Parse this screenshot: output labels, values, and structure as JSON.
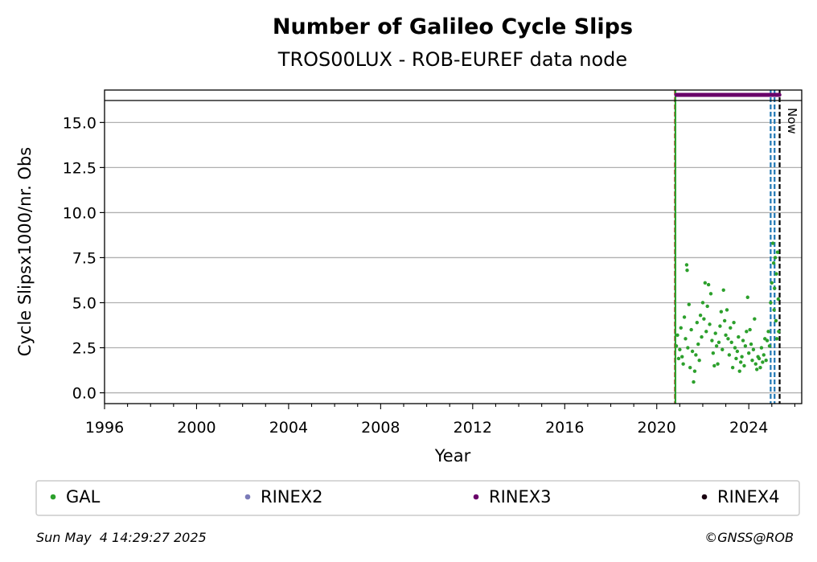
{
  "chart_data": {
    "type": "scatter",
    "title": "Number of Galileo Cycle Slips",
    "subtitle": "TROS00LUX - ROB-EUREF data node",
    "xlabel": "Year",
    "ylabel": "Cycle Slipsx1000/nr. Obs",
    "xlim": [
      1996,
      2026.3
    ],
    "ylim": [
      -0.6,
      16.8
    ],
    "xticks": [
      "1996",
      "2000",
      "2004",
      "2008",
      "2012",
      "2016",
      "2020",
      "2024"
    ],
    "yticks": [
      "0.0",
      "2.5",
      "5.0",
      "7.5",
      "10.0",
      "12.5",
      "15.0"
    ],
    "grid": "horizontal",
    "legend_position": "bottom",
    "legend": [
      {
        "label": "GAL",
        "color": "#2ca02c"
      },
      {
        "label": "RINEX2",
        "color": "#7b7bb8"
      },
      {
        "label": "RINEX3",
        "color": "#6a006a"
      },
      {
        "label": "RINEX4",
        "color": "#1a0010"
      }
    ],
    "series": [
      {
        "name": "GAL",
        "color": "#2ca02c",
        "points": [
          [
            2020.85,
            2.6
          ],
          [
            2020.9,
            3.2
          ],
          [
            2020.95,
            1.9
          ],
          [
            2021.0,
            2.4
          ],
          [
            2021.05,
            3.6
          ],
          [
            2021.1,
            2.0
          ],
          [
            2021.15,
            1.6
          ],
          [
            2021.2,
            4.2
          ],
          [
            2021.25,
            3.0
          ],
          [
            2021.3,
            7.1
          ],
          [
            2021.32,
            6.8
          ],
          [
            2021.35,
            2.5
          ],
          [
            2021.4,
            4.9
          ],
          [
            2021.45,
            1.4
          ],
          [
            2021.5,
            3.5
          ],
          [
            2021.55,
            2.3
          ],
          [
            2021.6,
            0.6
          ],
          [
            2021.65,
            1.2
          ],
          [
            2021.7,
            2.1
          ],
          [
            2021.75,
            3.9
          ],
          [
            2021.8,
            2.7
          ],
          [
            2021.85,
            1.8
          ],
          [
            2021.9,
            4.3
          ],
          [
            2021.95,
            3.1
          ],
          [
            2022.0,
            5.0
          ],
          [
            2022.05,
            4.1
          ],
          [
            2022.1,
            6.1
          ],
          [
            2022.15,
            3.4
          ],
          [
            2022.2,
            4.8
          ],
          [
            2022.25,
            6.0
          ],
          [
            2022.3,
            3.8
          ],
          [
            2022.35,
            5.5
          ],
          [
            2022.4,
            2.9
          ],
          [
            2022.45,
            2.2
          ],
          [
            2022.5,
            1.5
          ],
          [
            2022.55,
            3.3
          ],
          [
            2022.6,
            2.6
          ],
          [
            2022.65,
            1.6
          ],
          [
            2022.7,
            2.8
          ],
          [
            2022.75,
            3.7
          ],
          [
            2022.8,
            4.5
          ],
          [
            2022.85,
            2.4
          ],
          [
            2022.9,
            5.7
          ],
          [
            2022.95,
            4.0
          ],
          [
            2023.0,
            3.2
          ],
          [
            2023.05,
            4.6
          ],
          [
            2023.1,
            3.0
          ],
          [
            2023.15,
            2.1
          ],
          [
            2023.2,
            3.6
          ],
          [
            2023.25,
            2.8
          ],
          [
            2023.3,
            1.4
          ],
          [
            2023.35,
            3.9
          ],
          [
            2023.4,
            2.5
          ],
          [
            2023.45,
            1.9
          ],
          [
            2023.5,
            2.3
          ],
          [
            2023.55,
            3.1
          ],
          [
            2023.6,
            1.2
          ],
          [
            2023.65,
            1.7
          ],
          [
            2023.7,
            2.0
          ],
          [
            2023.75,
            2.9
          ],
          [
            2023.8,
            1.5
          ],
          [
            2023.85,
            2.6
          ],
          [
            2023.9,
            3.4
          ],
          [
            2023.95,
            5.3
          ],
          [
            2024.0,
            2.2
          ],
          [
            2024.05,
            3.5
          ],
          [
            2024.1,
            2.7
          ],
          [
            2024.15,
            1.8
          ],
          [
            2024.2,
            2.4
          ],
          [
            2024.25,
            4.1
          ],
          [
            2024.3,
            1.6
          ],
          [
            2024.35,
            1.3
          ],
          [
            2024.4,
            2.0
          ],
          [
            2024.45,
            1.9
          ],
          [
            2024.5,
            1.4
          ],
          [
            2024.55,
            2.5
          ],
          [
            2024.6,
            1.7
          ],
          [
            2024.65,
            2.1
          ],
          [
            2024.7,
            3.0
          ],
          [
            2024.75,
            1.8
          ],
          [
            2024.8,
            2.9
          ],
          [
            2024.85,
            3.4
          ],
          [
            2024.9,
            2.6
          ],
          [
            2024.95,
            5.0
          ],
          [
            2025.0,
            6.1
          ],
          [
            2025.05,
            8.3
          ],
          [
            2025.08,
            7.2
          ],
          [
            2025.1,
            4.6
          ],
          [
            2025.12,
            5.8
          ],
          [
            2025.15,
            7.5
          ],
          [
            2025.18,
            4.0
          ],
          [
            2025.2,
            6.6
          ],
          [
            2025.22,
            3.0
          ],
          [
            2025.25,
            7.8
          ],
          [
            2025.28,
            5.2
          ],
          [
            2025.3,
            3.4
          ]
        ]
      }
    ],
    "rinex3_bar": {
      "start": 2020.85,
      "end": 2025.33,
      "y": 16.8,
      "color": "#6a006a"
    },
    "vertical_markers": [
      {
        "x": 2020.79,
        "color": "#d62728",
        "style": "dashed"
      },
      {
        "x": 2020.81,
        "color": "#2ca02c",
        "style": "solid"
      },
      {
        "x": 2024.95,
        "color": "#1f77b4",
        "style": "dashed"
      },
      {
        "x": 2025.12,
        "color": "#1f77b4",
        "style": "dashed"
      },
      {
        "x": 2025.34,
        "color": "#000000",
        "style": "dashed"
      }
    ],
    "now_label": "Now"
  },
  "footer": {
    "timestamp": "Sun May  4 14:29:27 2025",
    "copyright": "©GNSS@ROB"
  }
}
